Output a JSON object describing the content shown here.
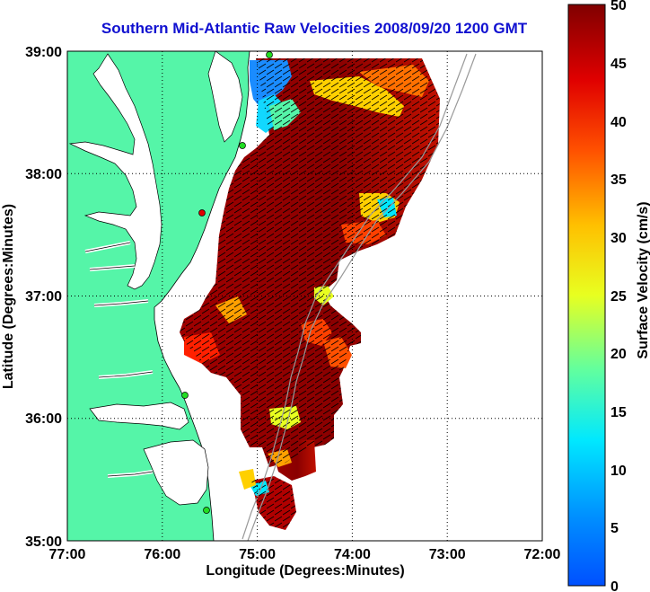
{
  "title": "Southern Mid-Atlantic Raw Velocities 2008/09/20 1200 GMT",
  "axes": {
    "xlabel": "Longitude (Degrees:Minutes)",
    "ylabel": "Latitude (Degrees:Minutes)",
    "x_ticks": [
      "77:00",
      "76:00",
      "75:00",
      "74:00",
      "73:00",
      "72:00"
    ],
    "y_ticks": [
      "39:00",
      "38:00",
      "37:00",
      "36:00",
      "35:00"
    ],
    "x_range": [
      -77,
      -72
    ],
    "y_range": [
      35,
      39
    ],
    "grid": "dotted"
  },
  "colorbar": {
    "label": "Surface Velocity (cm/s)",
    "ticks": [
      "50",
      "45",
      "40",
      "35",
      "30",
      "25",
      "20",
      "15",
      "10",
      "5",
      "0"
    ],
    "range": [
      0,
      50
    ],
    "colormap": "jet"
  },
  "colors": {
    "land": "#55f5a8",
    "water": "#ffffff",
    "title": "#1010d0",
    "station_dot": "#22dd22"
  }
}
